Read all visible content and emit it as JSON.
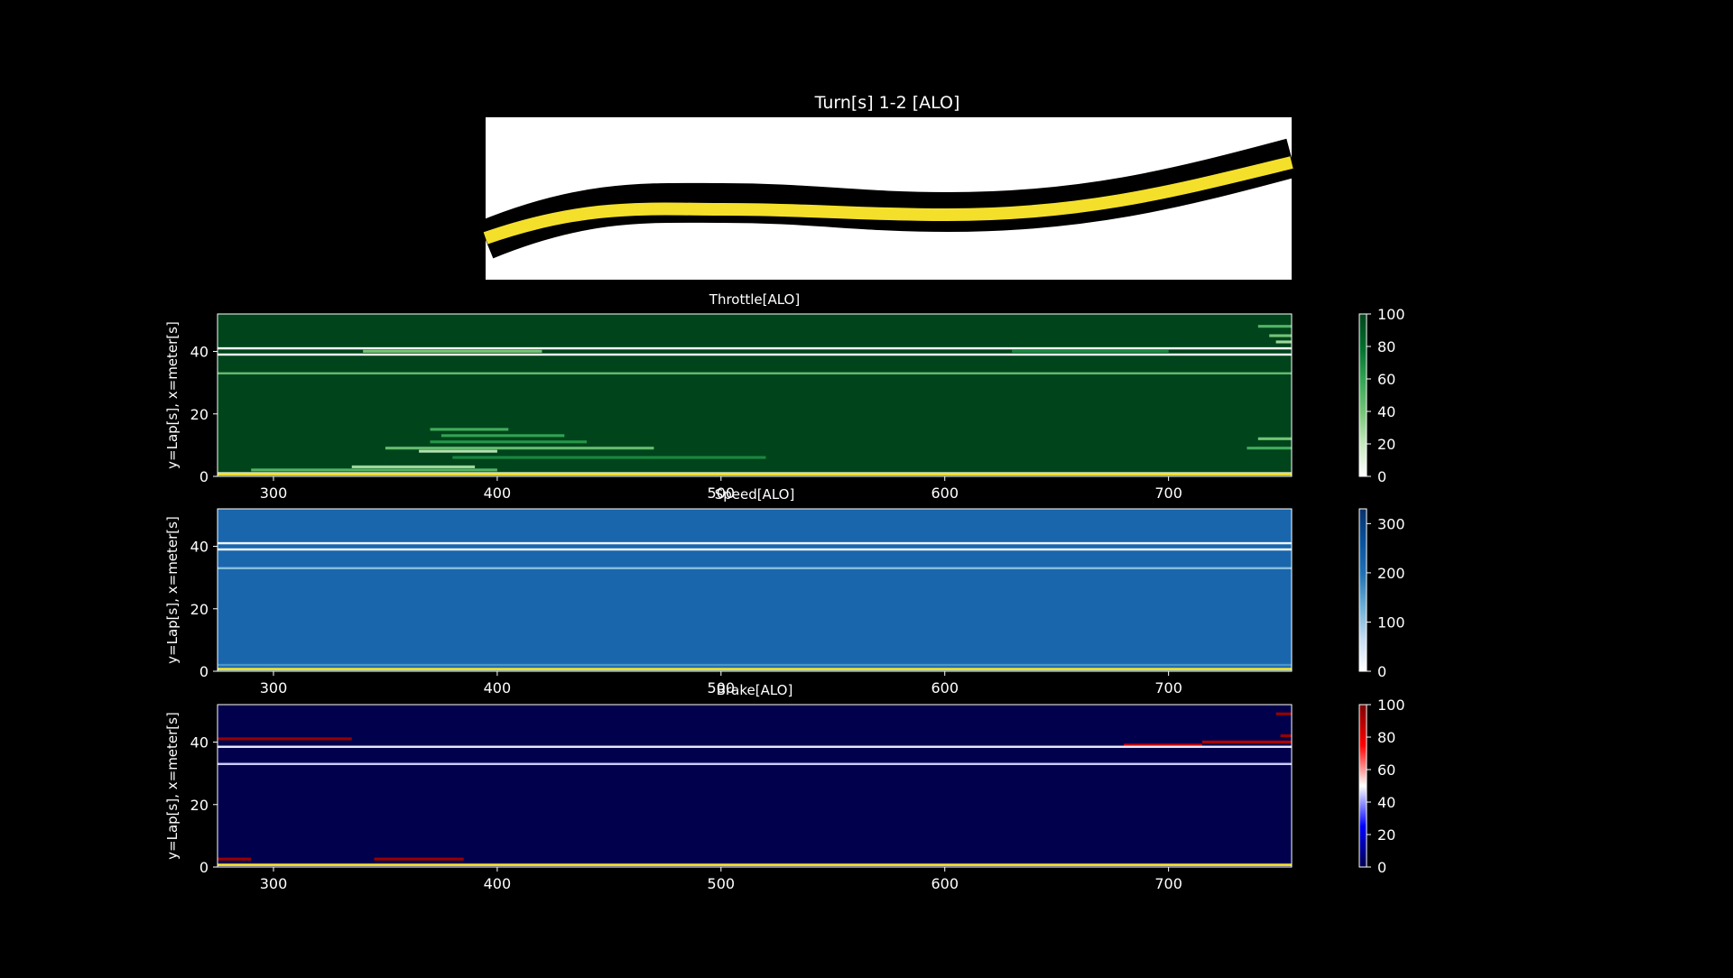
{
  "figure": {
    "background": "#000000",
    "text_color": "#ffffff"
  },
  "chart_data": [
    {
      "id": "track-map",
      "type": "map",
      "title": "Turn[s] 1-2 [ALO]",
      "colors": {
        "background": "#ffffff",
        "track": "#000000",
        "racing_line": "#f4e02a"
      }
    },
    {
      "id": "throttle",
      "type": "heatmap",
      "title": "Throttle[ALO]",
      "xlabel": "",
      "ylabel": "y=Lap[s], x=meter[s]",
      "xlim": [
        275,
        755
      ],
      "ylim": [
        0,
        52
      ],
      "xticks": [
        300,
        400,
        500,
        600,
        700
      ],
      "yticks": [
        0,
        20,
        40
      ],
      "colorbar": {
        "min": 0,
        "max": 100,
        "ticks": [
          0,
          20,
          40,
          60,
          80,
          100
        ],
        "colors": [
          "#ffffff",
          "#c7e9c0",
          "#74c476",
          "#31a354",
          "#006d2c",
          "#00441b"
        ]
      },
      "base_value": 100,
      "bands": [
        {
          "lap": 41,
          "value": 0
        },
        {
          "lap": 39,
          "value": 0
        },
        {
          "lap": 33,
          "value": 45
        },
        {
          "lap": 1,
          "value": 10
        }
      ],
      "patches": [
        {
          "lap": 15,
          "x": [
            370,
            405
          ],
          "value": 55
        },
        {
          "lap": 13,
          "x": [
            375,
            430
          ],
          "value": 60
        },
        {
          "lap": 11,
          "x": [
            370,
            440
          ],
          "value": 65
        },
        {
          "lap": 9,
          "x": [
            350,
            470
          ],
          "value": 45
        },
        {
          "lap": 8,
          "x": [
            365,
            400
          ],
          "value": 25
        },
        {
          "lap": 6,
          "x": [
            380,
            520
          ],
          "value": 70
        },
        {
          "lap": 3,
          "x": [
            335,
            390
          ],
          "value": 30
        },
        {
          "lap": 2,
          "x": [
            290,
            400
          ],
          "value": 50
        },
        {
          "lap": 40,
          "x": [
            340,
            420
          ],
          "value": 40
        },
        {
          "lap": 40,
          "x": [
            630,
            700
          ],
          "value": 70
        },
        {
          "lap": 48,
          "x": [
            740,
            755
          ],
          "value": 50
        },
        {
          "lap": 45,
          "x": [
            745,
            755
          ],
          "value": 40
        },
        {
          "lap": 43,
          "x": [
            748,
            755
          ],
          "value": 30
        },
        {
          "lap": 12,
          "x": [
            740,
            755
          ],
          "value": 40
        },
        {
          "lap": 9,
          "x": [
            735,
            755
          ],
          "value": 55
        }
      ]
    },
    {
      "id": "speed",
      "type": "heatmap",
      "title": "Speed[ALO]",
      "xlabel": "",
      "ylabel": "y=Lap[s], x=meter[s]",
      "xlim": [
        275,
        755
      ],
      "ylim": [
        0,
        52
      ],
      "xticks": [
        300,
        400,
        500,
        600,
        700
      ],
      "yticks": [
        0,
        20,
        40
      ],
      "colorbar": {
        "min": 0,
        "max": 330,
        "ticks": [
          0,
          100,
          200,
          300
        ],
        "colors": [
          "#ffffff",
          "#c6dbef",
          "#6baed6",
          "#2171b5",
          "#08519c",
          "#08306b"
        ]
      },
      "base_value": 220,
      "bands": [
        {
          "lap": 41,
          "value": 20
        },
        {
          "lap": 39,
          "value": 10
        },
        {
          "lap": 33,
          "value": 110
        },
        {
          "lap": 2,
          "value": 160
        }
      ],
      "patches": []
    },
    {
      "id": "brake",
      "type": "heatmap",
      "title": "Brake[ALO]",
      "xlabel": "",
      "ylabel": "y=Lap[s], x=meter[s]",
      "xlim": [
        275,
        755
      ],
      "ylim": [
        0,
        52
      ],
      "xticks": [
        300,
        400,
        500,
        600,
        700
      ],
      "yticks": [
        0,
        20,
        40
      ],
      "colorbar": {
        "min": 0,
        "max": 100,
        "ticks": [
          0,
          20,
          40,
          60,
          80,
          100
        ],
        "colors": [
          "#00004c",
          "#0000ff",
          "#ffffff",
          "#ff0000",
          "#7f0000"
        ]
      },
      "base_value": 0,
      "bands": [
        {
          "lap": 38.5,
          "value": 48
        },
        {
          "lap": 33,
          "value": 45
        }
      ],
      "patches": [
        {
          "lap": 41,
          "x": [
            275,
            335
          ],
          "value": 95
        },
        {
          "lap": 2.5,
          "x": [
            275,
            290
          ],
          "value": 95
        },
        {
          "lap": 2.5,
          "x": [
            345,
            385
          ],
          "value": 95
        },
        {
          "lap": 40,
          "x": [
            715,
            755
          ],
          "value": 90
        },
        {
          "lap": 39,
          "x": [
            680,
            715
          ],
          "value": 85
        },
        {
          "lap": 49,
          "x": [
            748,
            755
          ],
          "value": 95
        },
        {
          "lap": 42,
          "x": [
            750,
            755
          ],
          "value": 95
        }
      ]
    }
  ],
  "lap_zero_line": {
    "lap": 0.7,
    "color": "#f4e02a"
  }
}
